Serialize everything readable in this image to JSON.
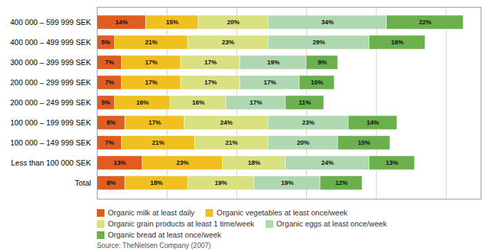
{
  "chart_data": {
    "type": "bar",
    "orientation": "horizontal",
    "stacked": true,
    "data_labels": true,
    "categories": [
      "400 000 – 599 999 SEK",
      "400 000 – 499 999 SEK",
      "300 000 – 399 999 SEK",
      "200 000 – 299 999 SEK",
      "200 000 – 249 999 SEK",
      "100 000 – 199 999 SEK",
      "100 000 – 149 999 SEK",
      "Less than 100 000 SEK",
      "Total"
    ],
    "series": [
      {
        "name": "Organic milk at least daily",
        "color": "#e05c20",
        "values": [
          14,
          5,
          7,
          7,
          5,
          8,
          7,
          13,
          8
        ],
        "value_labels": [
          "14%",
          "5%",
          "7%",
          "7%",
          "5%",
          "8%",
          "7%",
          "13%",
          "8%"
        ]
      },
      {
        "name": "Organic vegetables at least once/week",
        "color": "#f0c020",
        "values": [
          15,
          21,
          17,
          17,
          16,
          17,
          21,
          23,
          18
        ],
        "value_labels": [
          "15%",
          "21%",
          "17%",
          "17%",
          "16%",
          "17%",
          "21%",
          "23%",
          "18%"
        ]
      },
      {
        "name": "Organic grain products at least 1 time/week",
        "color": "#d8e080",
        "values": [
          20,
          23,
          17,
          17,
          16,
          24,
          21,
          18,
          19
        ],
        "value_labels": [
          "20%",
          "23%",
          "17%",
          "17%",
          "16%",
          "24%",
          "21%",
          "18%",
          "19%"
        ]
      },
      {
        "name": "Organic eggs at least once/week",
        "color": "#b0d8b0",
        "values": [
          34,
          29,
          19,
          17,
          17,
          23,
          20,
          24,
          19
        ],
        "value_labels": [
          "34%",
          "29%",
          "19%",
          "17%",
          "17%",
          "23%",
          "20%",
          "24%",
          "19%"
        ]
      },
      {
        "name": "Organic bread at least once/week",
        "color": "#6ab04c",
        "values": [
          22,
          16,
          9,
          10,
          11,
          14,
          15,
          13,
          12
        ],
        "value_labels": [
          "22%",
          "16%",
          "9%",
          "10%",
          "11%",
          "14%",
          "15%",
          "13%",
          "12%"
        ]
      }
    ],
    "xlim": [
      0,
      110
    ],
    "xticks": [
      0,
      20,
      40,
      60,
      80,
      100
    ],
    "grid": true,
    "tick_labels": "y",
    "legend": "bottom",
    "annotations": [
      "Source: TheNielsen Company (2007)"
    ]
  }
}
